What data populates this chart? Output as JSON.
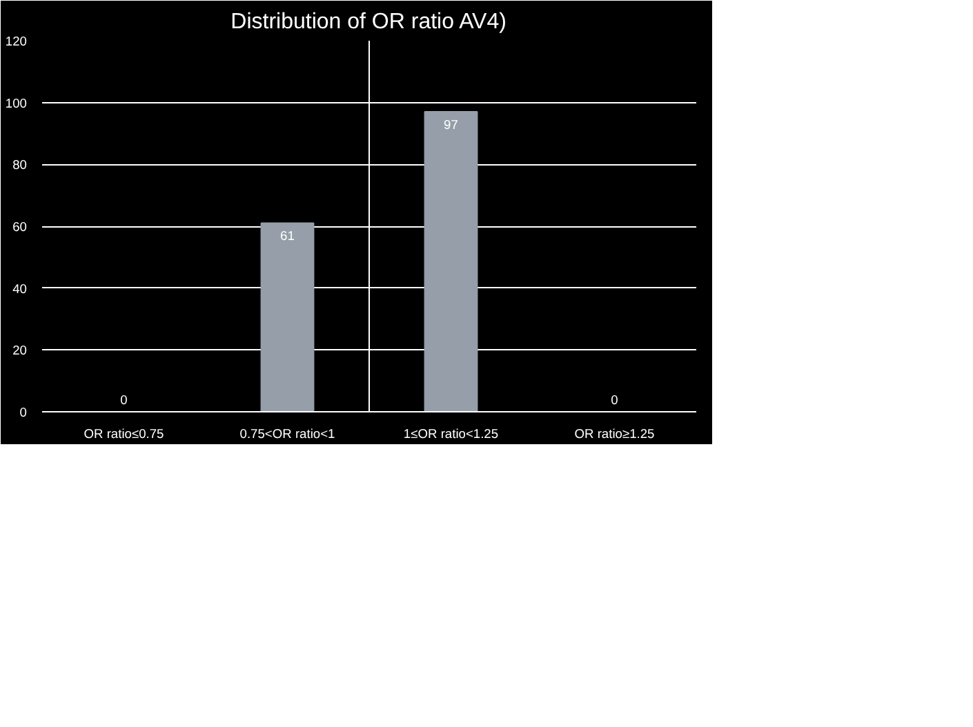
{
  "chart_data": {
    "type": "bar",
    "title": "Distribution of OR ratio AV4)",
    "categories": [
      "OR ratio≤0.75",
      "0.75<OR ratio<1",
      "1≤OR ratio<1.25",
      "OR ratio≥1.25"
    ],
    "values": [
      0,
      61,
      97,
      0
    ],
    "color": "#959ea9",
    "ylim": [
      0,
      120
    ],
    "yticks": [
      0,
      20,
      40,
      60,
      80,
      100,
      120
    ],
    "grid": "y",
    "data_labels": true
  }
}
